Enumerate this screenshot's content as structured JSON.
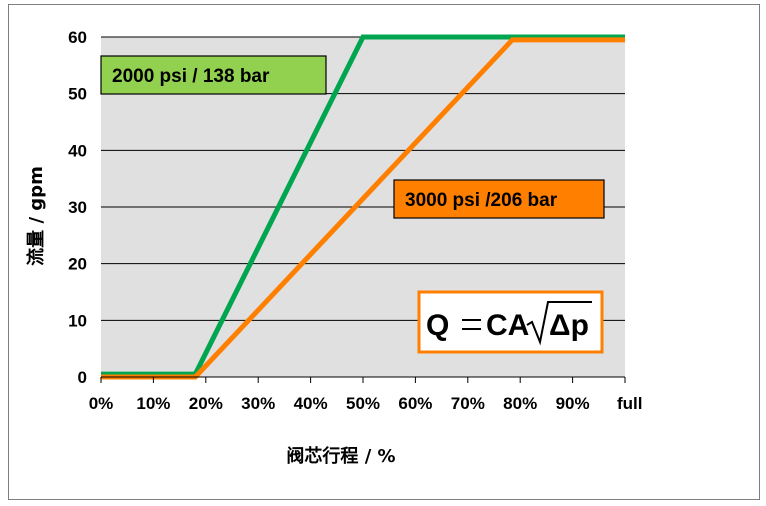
{
  "chart_data": {
    "type": "line",
    "xlabel": "阀芯行程 / %",
    "ylabel": "流量 / gpm",
    "x_ticks": [
      "0%",
      "10%",
      "20%",
      "30%",
      "40%",
      "50%",
      "60%",
      "70%",
      "80%",
      "90%",
      "full"
    ],
    "y_ticks": [
      "0",
      "10",
      "20",
      "30",
      "40",
      "50",
      "60"
    ],
    "xlim": [
      0,
      100
    ],
    "ylim": [
      0,
      60
    ],
    "grid": "horizontal",
    "series": [
      {
        "name": "2000 psi / 138 bar",
        "color": "#00a550",
        "points": [
          [
            0,
            0.5
          ],
          [
            18,
            0.5
          ],
          [
            50,
            60
          ],
          [
            100,
            60
          ]
        ]
      },
      {
        "name": "3000 psi /206 bar",
        "color": "#ff7f00",
        "points": [
          [
            0,
            0
          ],
          [
            18,
            0
          ],
          [
            78.5,
            59.5
          ],
          [
            100,
            59.5
          ]
        ]
      }
    ],
    "annotations": [
      {
        "text": "2000 psi / 138 bar",
        "background": "#92d050",
        "border": "#000000"
      },
      {
        "text": "3000 psi /206 bar",
        "background": "#ff7f00",
        "border": "#000000"
      },
      {
        "text": "Q = CA√Δp",
        "background": "#ffffff",
        "border": "#ff7f00"
      }
    ],
    "plot_background": "#e0e0e0"
  }
}
